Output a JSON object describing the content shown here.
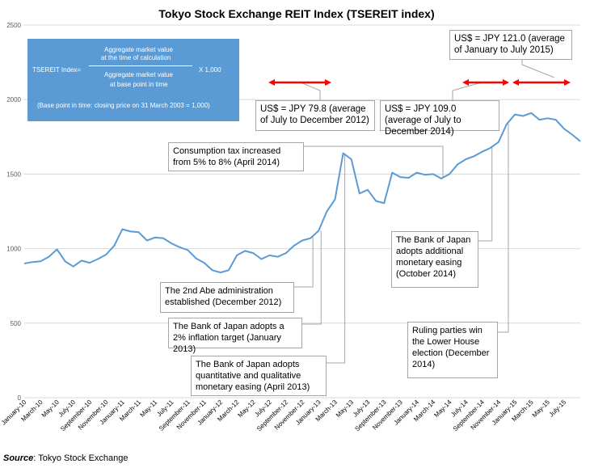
{
  "chart_data": {
    "type": "line",
    "title": "Tokyo Stock Exchange REIT Index (TSEREIT index)",
    "ylim": [
      0,
      2500
    ],
    "yticks": [
      0,
      500,
      1000,
      1500,
      2000,
      2500
    ],
    "x_labels": [
      "January-10",
      "March-10",
      "May-10",
      "July-10",
      "September-10",
      "November-10",
      "January-11",
      "March-11",
      "May-11",
      "July-11",
      "September-11",
      "November-11",
      "January-12",
      "March-12",
      "May-12",
      "July-12",
      "September-12",
      "November-12",
      "January-13",
      "March-13",
      "May-13",
      "July-13",
      "September-13",
      "November-13",
      "January-14",
      "March-14",
      "May-14",
      "July-14",
      "September-14",
      "November-14",
      "January-15",
      "March-15",
      "May-15",
      "July-15"
    ],
    "series": [
      {
        "name": "TSEREIT index",
        "color": "#5b9bd5",
        "values": [
          900,
          910,
          915,
          945,
          995,
          915,
          880,
          920,
          905,
          930,
          960,
          1020,
          1130,
          1115,
          1110,
          1055,
          1075,
          1070,
          1035,
          1010,
          990,
          935,
          905,
          855,
          840,
          855,
          955,
          985,
          970,
          930,
          955,
          945,
          970,
          1020,
          1055,
          1070,
          1120,
          1250,
          1330,
          1640,
          1600,
          1370,
          1395,
          1320,
          1305,
          1510,
          1480,
          1475,
          1510,
          1495,
          1500,
          1470,
          1500,
          1565,
          1600,
          1620,
          1650,
          1675,
          1715,
          1835,
          1900,
          1890,
          1910,
          1865,
          1875,
          1865,
          1805,
          1765,
          1720
        ]
      }
    ],
    "annotations": {
      "abe": "The 2nd Abe administration established (December 2012)",
      "boj_inflation": "The Bank of Japan adopts a 2% inflation target (January 2013)",
      "boj_qqe": "The Bank of Japan adopts quantitative and qualitative monetary easing (April 2013)",
      "tax": "Consumption tax increased from 5% to 8% (April 2014)",
      "boj_oct": "The Bank of Japan adopts additional monetary easing (October 2014)",
      "election": "Ruling parties win the Lower House election (December 2014)",
      "usd_2012": "US$ = JPY 79.8 (average of July to December 2012)",
      "usd_2014": "US$ = JPY 109.0 (average of July to December 2014)",
      "usd_2015": "US$ = JPY 121.0 (average of January to July 2015)"
    },
    "fx_arrow_color": "#ff0000"
  },
  "formula": {
    "lhs": "TSEREIT Index=",
    "num1": "Aggregate market value",
    "num2": "at the time of calculation",
    "den1": "Aggregate market value",
    "den2": "at base point in time",
    "mult": "X 1,000",
    "note": "(Base point in time: closing price on 31 March 2003 = 1,000)"
  },
  "source": {
    "label": "Source",
    "text": ": Tokyo Stock Exchange"
  }
}
